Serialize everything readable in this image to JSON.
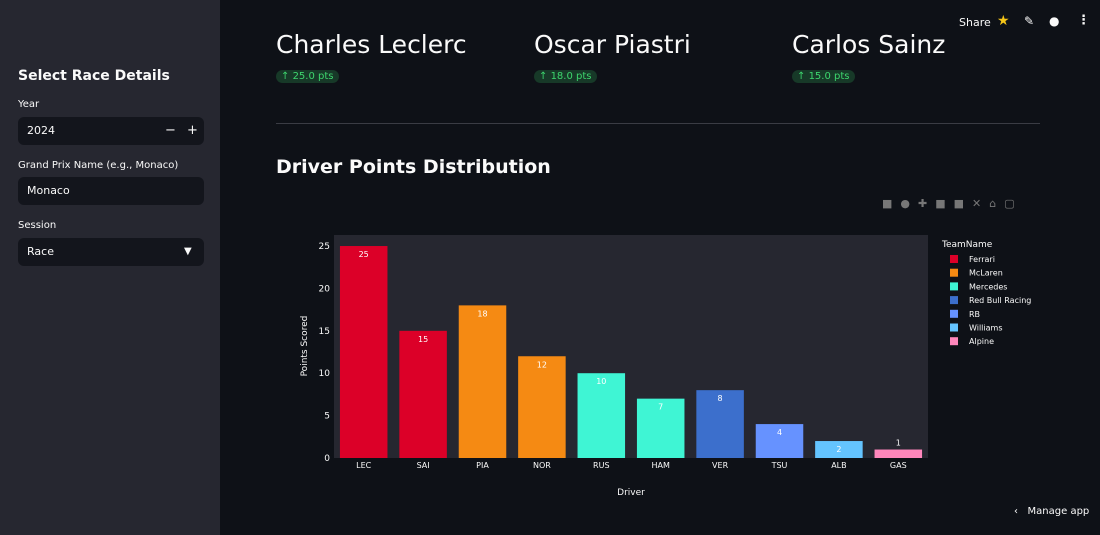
{
  "sidebar": {
    "title": "Select Race Details",
    "year_label": "Year",
    "year": "2024",
    "gp_label": "Grand Prix Name (e.g., Monaco)",
    "gp": "Monaco",
    "session_label": "Session",
    "session": "Race"
  },
  "toolbar": {
    "share": "Share"
  },
  "metrics": [
    {
      "label": "Charles Leclerc",
      "delta": "25.0 pts"
    },
    {
      "label": "Oscar Piastri",
      "delta": "18.0 pts"
    },
    {
      "label": "Carlos Sainz",
      "delta": "15.0 pts"
    }
  ],
  "section_title": "Driver Points Distribution",
  "chart_data": {
    "type": "bar",
    "x_label": "Driver",
    "y_label": "Points Scored",
    "legend_title": "TeamName",
    "categories": [
      "LEC",
      "SAI",
      "PIA",
      "NOR",
      "RUS",
      "HAM",
      "VER",
      "TSU",
      "ALB",
      "GAS"
    ],
    "series": [
      {
        "name": "Ferrari",
        "color": "#dc0028",
        "values": [
          25,
          15,
          null,
          null,
          null,
          null,
          null,
          null,
          null,
          null
        ]
      },
      {
        "name": "McLaren",
        "color": "#f58a13",
        "values": [
          null,
          null,
          18,
          12,
          null,
          null,
          null,
          null,
          null,
          null
        ]
      },
      {
        "name": "Mercedes",
        "color": "#3ff5d4",
        "values": [
          null,
          null,
          null,
          null,
          10,
          7,
          null,
          null,
          null,
          null
        ]
      },
      {
        "name": "Red Bull Racing",
        "color": "#3c6fcc",
        "values": [
          null,
          null,
          null,
          null,
          null,
          null,
          8,
          null,
          null,
          null
        ]
      },
      {
        "name": "RB",
        "color": "#6692ff",
        "values": [
          null,
          null,
          null,
          null,
          null,
          null,
          null,
          4,
          null,
          null
        ]
      },
      {
        "name": "Williams",
        "color": "#64c4ff",
        "values": [
          null,
          null,
          null,
          null,
          null,
          null,
          null,
          null,
          2,
          null
        ]
      },
      {
        "name": "Alpine",
        "color": "#ff87bc",
        "values": [
          null,
          null,
          null,
          null,
          null,
          null,
          null,
          null,
          null,
          1
        ]
      }
    ],
    "ylim": [
      0,
      26.3
    ],
    "yticks": [
      0,
      5,
      10,
      15,
      20,
      25
    ],
    "grid": false
  },
  "manage_app": "Manage app"
}
